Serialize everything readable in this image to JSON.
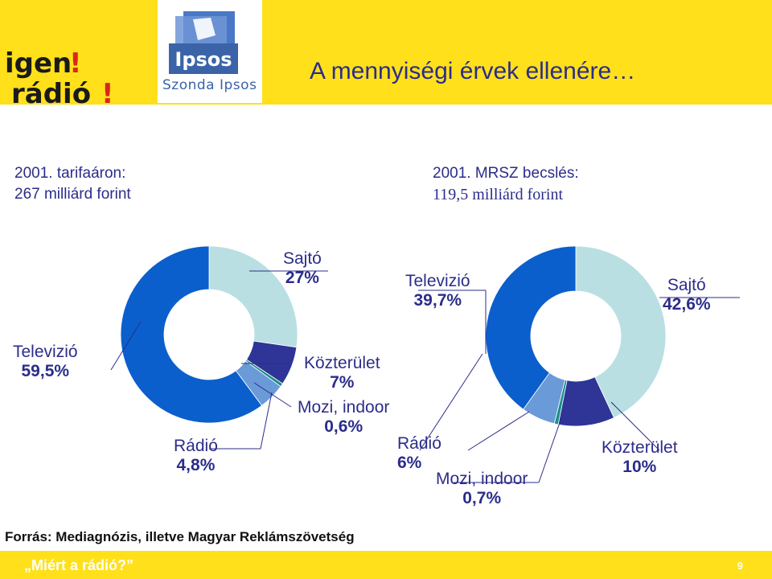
{
  "header": {
    "title": "A mennyiségi érvek ellenére…",
    "igen_logo_text": "igen! rádió!",
    "ipsos_logo_text": "Ipsos",
    "ipsos_tagline": "Szonda Ipsos"
  },
  "colors": {
    "brand_yellow": "#ffe01b",
    "title_navy": "#2b2d8a",
    "tv_blue": "#0a5fcc",
    "press_lightblue": "#b9dfe3",
    "outdoor_navy": "#2e3596",
    "cinema_teal": "#1a8f8a",
    "radio_skyblue": "#6a9ad8"
  },
  "chart_data": [
    {
      "type": "pie",
      "title": "2001. tarifaáron:",
      "subtitle": "267 milliárd forint",
      "labels": [
        "Sajtó",
        "Közterület",
        "Mozi, indoor",
        "Rádió",
        "Televizió"
      ],
      "values": [
        27,
        7,
        0.6,
        4.8,
        59.5
      ],
      "value_labels": [
        "27%",
        "7%",
        "0,6%",
        "4,8%",
        "59,5%"
      ],
      "colors": [
        "#b9dfe3",
        "#2e3596",
        "#1a8f8a",
        "#6a9ad8",
        "#0a5fcc"
      ]
    },
    {
      "type": "pie",
      "title": "2001. MRSZ becslés:",
      "subtitle": "119,5 milliárd forint",
      "labels": [
        "Sajtó",
        "Közterület",
        "Mozi, indoor",
        "Rádió",
        "Televizió"
      ],
      "values": [
        42.6,
        10,
        0.7,
        6,
        39.7
      ],
      "value_labels": [
        "42,6%",
        "10%",
        "0,7%",
        "6%",
        "39,7%"
      ],
      "colors": [
        "#b9dfe3",
        "#2e3596",
        "#1a8f8a",
        "#6a9ad8",
        "#0a5fcc"
      ]
    }
  ],
  "footer": {
    "source": "Forrás: Mediagnózis, illetve Magyar Reklámszövetség",
    "nav_text": "„Miért a rádió?”",
    "page_number": "9"
  }
}
